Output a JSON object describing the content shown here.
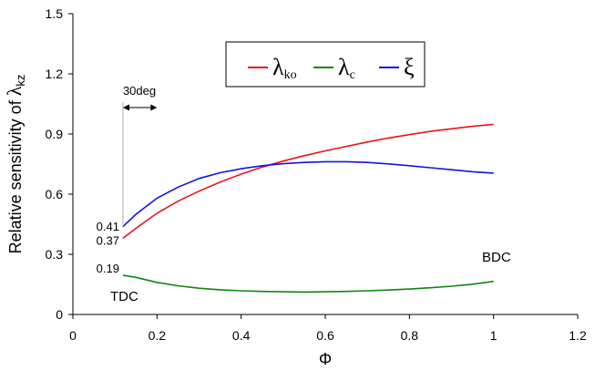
{
  "chart_data": {
    "type": "line",
    "xlabel": "Φ",
    "ylabel_prefix": "Relative sensitivity of ",
    "ylabel_symbol": "λ",
    "ylabel_sub": "kz",
    "xlim": [
      0,
      1.2
    ],
    "ylim": [
      0,
      1.5
    ],
    "xticks": [
      "0",
      "0.2",
      "0.4",
      "0.6",
      "0.8",
      "1",
      "1.2"
    ],
    "yticks": [
      "0",
      "0.3",
      "0.6",
      "0.9",
      "1.2",
      "1.5"
    ],
    "grid": false,
    "legend_position": "top-center",
    "series": [
      {
        "symbol": "λ",
        "sub": "ko",
        "color": "#e8131a",
        "points": [
          [
            0.119,
            0.38
          ],
          [
            0.15,
            0.43
          ],
          [
            0.2,
            0.505
          ],
          [
            0.25,
            0.565
          ],
          [
            0.3,
            0.615
          ],
          [
            0.35,
            0.66
          ],
          [
            0.4,
            0.7
          ],
          [
            0.45,
            0.735
          ],
          [
            0.5,
            0.765
          ],
          [
            0.55,
            0.792
          ],
          [
            0.6,
            0.816
          ],
          [
            0.65,
            0.838
          ],
          [
            0.7,
            0.86
          ],
          [
            0.75,
            0.88
          ],
          [
            0.8,
            0.897
          ],
          [
            0.85,
            0.913
          ],
          [
            0.9,
            0.926
          ],
          [
            0.95,
            0.938
          ],
          [
            1.0,
            0.948
          ]
        ]
      },
      {
        "symbol": "λ",
        "sub": "c",
        "color": "#118511",
        "points": [
          [
            0.119,
            0.196
          ],
          [
            0.15,
            0.185
          ],
          [
            0.2,
            0.16
          ],
          [
            0.25,
            0.143
          ],
          [
            0.3,
            0.131
          ],
          [
            0.35,
            0.123
          ],
          [
            0.4,
            0.118
          ],
          [
            0.45,
            0.115
          ],
          [
            0.5,
            0.113
          ],
          [
            0.55,
            0.112
          ],
          [
            0.6,
            0.113
          ],
          [
            0.65,
            0.115
          ],
          [
            0.7,
            0.118
          ],
          [
            0.75,
            0.122
          ],
          [
            0.8,
            0.127
          ],
          [
            0.85,
            0.133
          ],
          [
            0.9,
            0.141
          ],
          [
            0.95,
            0.151
          ],
          [
            1.0,
            0.165
          ]
        ]
      },
      {
        "symbol": "ξ",
        "sub": "",
        "color": "#1313e0",
        "points": [
          [
            0.119,
            0.438
          ],
          [
            0.15,
            0.5
          ],
          [
            0.2,
            0.58
          ],
          [
            0.25,
            0.635
          ],
          [
            0.3,
            0.678
          ],
          [
            0.35,
            0.707
          ],
          [
            0.4,
            0.727
          ],
          [
            0.45,
            0.742
          ],
          [
            0.5,
            0.752
          ],
          [
            0.55,
            0.758
          ],
          [
            0.6,
            0.762
          ],
          [
            0.65,
            0.762
          ],
          [
            0.7,
            0.758
          ],
          [
            0.75,
            0.751
          ],
          [
            0.8,
            0.742
          ],
          [
            0.85,
            0.732
          ],
          [
            0.9,
            0.722
          ],
          [
            0.95,
            0.712
          ],
          [
            1.0,
            0.705
          ]
        ]
      }
    ],
    "annotations": {
      "angle_label": "30deg",
      "start_ref_x": 0.119,
      "label_041": "0.41",
      "label_037": "0.37",
      "label_019": "0.19",
      "tdc": "TDC",
      "bdc": "BDC"
    }
  }
}
